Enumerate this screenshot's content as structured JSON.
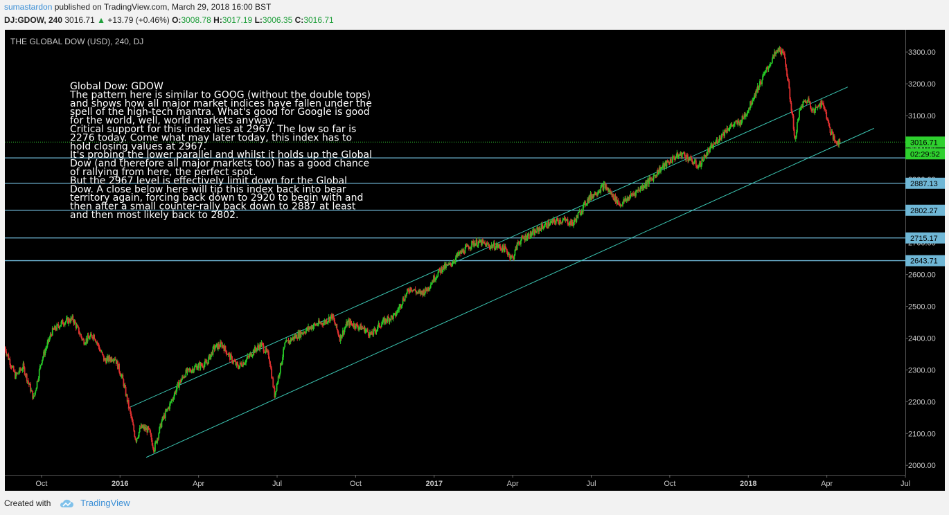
{
  "header": {
    "author": "sumastardon",
    "published_text": "published on TradingView.com, March 29, 2018 16:00 BST",
    "symbol": "DJ:GDOW, 240",
    "last": "3016.71",
    "up_arrow": "▲",
    "change": "+13.79 (+0.46%)",
    "open_label": "O:",
    "open": "3008.78",
    "high_label": "H:",
    "high": "3017.19",
    "low_label": "L:",
    "low": "3006.35",
    "close_label": "C:",
    "close": "3016.71"
  },
  "footer": {
    "created_with": "Created with",
    "brand": "TradingView",
    "logo_icon": "tradingview-cloud-icon"
  },
  "chart_data": {
    "type": "candlestick",
    "title": "THE GLOBAL DOW (USD), 240, DJ",
    "ylim": [
      1970,
      3370
    ],
    "y_ticks": [
      "2000.00",
      "2100.00",
      "2200.00",
      "2300.00",
      "2400.00",
      "2500.00",
      "2600.00",
      "2700.00",
      "2800.00",
      "2900.00",
      "3000.00",
      "3100.00",
      "3200.00",
      "3300.00"
    ],
    "x_ticks": [
      {
        "label": "Oct",
        "t": 9.0,
        "bold": false
      },
      {
        "label": "2016",
        "t": 12.0,
        "bold": true
      },
      {
        "label": "Apr",
        "t": 15.0,
        "bold": false
      },
      {
        "label": "Jul",
        "t": 18.0,
        "bold": false
      },
      {
        "label": "Oct",
        "t": 21.0,
        "bold": false
      },
      {
        "label": "2017",
        "t": 24.0,
        "bold": true
      },
      {
        "label": "Apr",
        "t": 27.0,
        "bold": false
      },
      {
        "label": "Jul",
        "t": 30.0,
        "bold": false
      },
      {
        "label": "Oct",
        "t": 33.0,
        "bold": false
      },
      {
        "label": "2018",
        "t": 36.0,
        "bold": true
      },
      {
        "label": "Apr",
        "t": 39.0,
        "bold": false
      },
      {
        "label": "Jul",
        "t": 42.0,
        "bold": false
      }
    ],
    "x_range_months": [
      7.6,
      42.0
    ],
    "price_path": [
      [
        7.6,
        2370
      ],
      [
        8.0,
        2280
      ],
      [
        8.3,
        2310
      ],
      [
        8.7,
        2210
      ],
      [
        9.0,
        2330
      ],
      [
        9.4,
        2420
      ],
      [
        9.8,
        2450
      ],
      [
        10.2,
        2460
      ],
      [
        10.6,
        2390
      ],
      [
        11.0,
        2410
      ],
      [
        11.4,
        2330
      ],
      [
        11.8,
        2340
      ],
      [
        12.1,
        2270
      ],
      [
        12.4,
        2160
      ],
      [
        12.6,
        2080
      ],
      [
        12.8,
        2120
      ],
      [
        13.1,
        2110
      ],
      [
        13.3,
        2050
      ],
      [
        13.6,
        2140
      ],
      [
        13.9,
        2190
      ],
      [
        14.2,
        2250
      ],
      [
        14.5,
        2290
      ],
      [
        14.9,
        2310
      ],
      [
        15.3,
        2320
      ],
      [
        15.6,
        2370
      ],
      [
        15.9,
        2380
      ],
      [
        16.2,
        2340
      ],
      [
        16.5,
        2310
      ],
      [
        16.8,
        2330
      ],
      [
        17.1,
        2360
      ],
      [
        17.4,
        2380
      ],
      [
        17.7,
        2340
      ],
      [
        17.9,
        2220
      ],
      [
        18.1,
        2300
      ],
      [
        18.3,
        2380
      ],
      [
        18.6,
        2400
      ],
      [
        19.0,
        2420
      ],
      [
        19.4,
        2440
      ],
      [
        19.8,
        2450
      ],
      [
        20.1,
        2470
      ],
      [
        20.4,
        2400
      ],
      [
        20.7,
        2450
      ],
      [
        21.0,
        2440
      ],
      [
        21.3,
        2430
      ],
      [
        21.6,
        2410
      ],
      [
        21.9,
        2440
      ],
      [
        22.2,
        2460
      ],
      [
        22.5,
        2470
      ],
      [
        22.8,
        2520
      ],
      [
        23.1,
        2560
      ],
      [
        23.4,
        2540
      ],
      [
        23.7,
        2550
      ],
      [
        24.0,
        2590
      ],
      [
        24.3,
        2620
      ],
      [
        24.6,
        2630
      ],
      [
        24.9,
        2660
      ],
      [
        25.2,
        2680
      ],
      [
        25.5,
        2700
      ],
      [
        25.8,
        2700
      ],
      [
        26.1,
        2690
      ],
      [
        26.4,
        2690
      ],
      [
        26.7,
        2680
      ],
      [
        27.0,
        2650
      ],
      [
        27.2,
        2700
      ],
      [
        27.5,
        2720
      ],
      [
        27.8,
        2730
      ],
      [
        28.1,
        2750
      ],
      [
        28.4,
        2760
      ],
      [
        28.7,
        2770
      ],
      [
        29.0,
        2770
      ],
      [
        29.3,
        2760
      ],
      [
        29.6,
        2800
      ],
      [
        29.9,
        2840
      ],
      [
        30.2,
        2860
      ],
      [
        30.5,
        2880
      ],
      [
        30.8,
        2850
      ],
      [
        31.1,
        2820
      ],
      [
        31.4,
        2840
      ],
      [
        31.7,
        2860
      ],
      [
        32.0,
        2880
      ],
      [
        32.3,
        2900
      ],
      [
        32.6,
        2930
      ],
      [
        32.9,
        2950
      ],
      [
        33.2,
        2970
      ],
      [
        33.5,
        2980
      ],
      [
        33.8,
        2960
      ],
      [
        34.1,
        2940
      ],
      [
        34.4,
        2980
      ],
      [
        34.7,
        3010
      ],
      [
        35.0,
        3040
      ],
      [
        35.2,
        3060
      ],
      [
        35.4,
        3070
      ],
      [
        35.7,
        3080
      ],
      [
        36.0,
        3120
      ],
      [
        36.2,
        3160
      ],
      [
        36.5,
        3210
      ],
      [
        36.8,
        3260
      ],
      [
        37.0,
        3290
      ],
      [
        37.2,
        3310
      ],
      [
        37.4,
        3280
      ],
      [
        37.5,
        3220
      ],
      [
        37.6,
        3150
      ],
      [
        37.7,
        3090
      ],
      [
        37.8,
        3010
      ],
      [
        37.9,
        3100
      ],
      [
        38.1,
        3140
      ],
      [
        38.3,
        3150
      ],
      [
        38.5,
        3110
      ],
      [
        38.7,
        3140
      ],
      [
        38.9,
        3130
      ],
      [
        39.1,
        3060
      ],
      [
        39.3,
        3020
      ],
      [
        39.5,
        3016.71
      ]
    ],
    "channel_upper": [
      [
        12.3,
        2180
      ],
      [
        39.8,
        3190
      ]
    ],
    "channel_lower": [
      [
        13.0,
        2025
      ],
      [
        40.8,
        3060
      ]
    ],
    "levels": [
      {
        "label": "2887.13",
        "value": 2887.13
      },
      {
        "label": "2802.27",
        "value": 2802.27
      },
      {
        "label": "2715.17",
        "value": 2715.17
      },
      {
        "label": "2643.71",
        "value": 2643.71
      }
    ],
    "level_2967": 2967,
    "last_price": {
      "label": "3016.71",
      "value": 3016.71
    },
    "countdown": "02:29:52",
    "annotation": [
      "Global Dow: GDOW",
      "The pattern here is similar to GOOG (without the double tops)",
      "and shows how all major market indices have fallen under the",
      "spell of the high-tech mantra. What's good for Google is good",
      "for the world, well, world markets anyway.",
      "Critical support for this index lies at 2967. The low so far is",
      "2276 today. Come what may later today, this index has to",
      "hold closing values at 2967.",
      "It's probing the lower parallel and whilst it holds up the Global",
      "Dow (and therefore all major markets too) has a good chance",
      "of rallying from here, the perfect spot.",
      "But the 2967 level is effectively limit down for the Global",
      "Dow. A close below here will tip this index back into bear",
      "territory again, forcing back down to 2920 to begin with and",
      "then after a small counter-rally back down to 2887 at least",
      "and then most likely back to 2802."
    ],
    "colors": {
      "background": "#000000",
      "up": "#26c826",
      "down": "#e03030",
      "channel": "#3cc7b4",
      "levels": "#6fb7d6",
      "last_line": "#31c631",
      "axis_text": "#c8c8c8",
      "annotation_text": "#ffffff"
    }
  }
}
